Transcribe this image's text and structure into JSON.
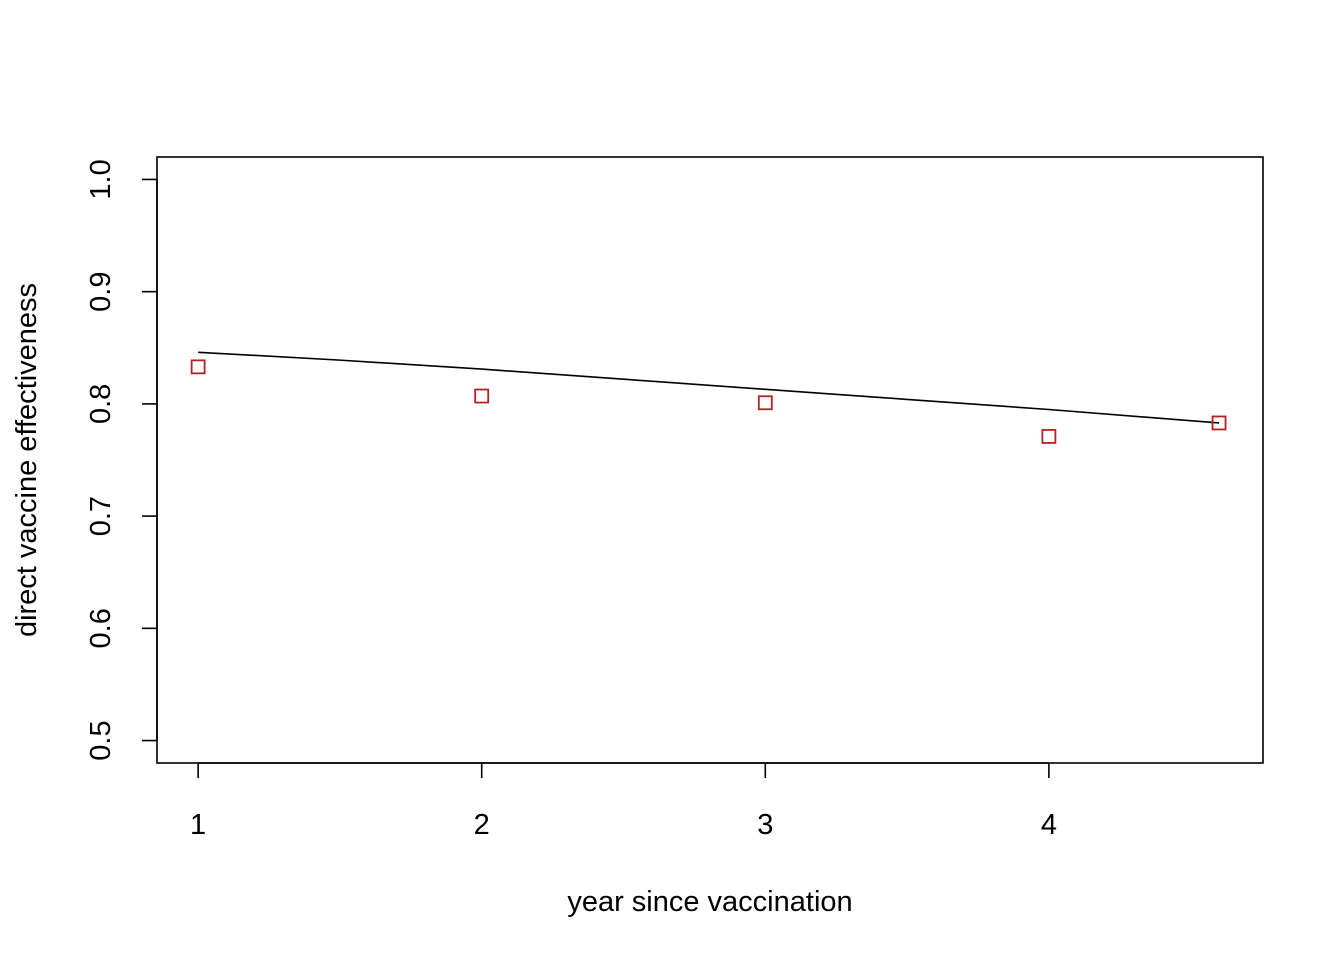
{
  "chart_data": {
    "type": "scatter",
    "title": "",
    "xlabel": "year since vaccination",
    "ylabel": "direct vaccine effectiveness",
    "xlim": [
      0.855,
      4.755
    ],
    "ylim": [
      0.48,
      1.02
    ],
    "x_ticks": [
      "1",
      "2",
      "3",
      "4"
    ],
    "y_ticks": [
      "0.5",
      "0.6",
      "0.7",
      "0.8",
      "0.9",
      "1.0"
    ],
    "grid": false,
    "series": [
      {
        "type": "line",
        "color": "#000000",
        "x": [
          1.0,
          1.5,
          2.0,
          2.5,
          3.0,
          3.5,
          4.0,
          4.6
        ],
        "y": [
          0.846,
          0.839,
          0.831,
          0.822,
          0.813,
          0.804,
          0.795,
          0.783
        ]
      },
      {
        "type": "scatter",
        "marker": "open-square",
        "color": "#b22222",
        "x": [
          1.0,
          2.0,
          3.0,
          4.0,
          4.6
        ],
        "y": [
          0.833,
          0.807,
          0.801,
          0.771,
          0.783
        ]
      }
    ]
  }
}
